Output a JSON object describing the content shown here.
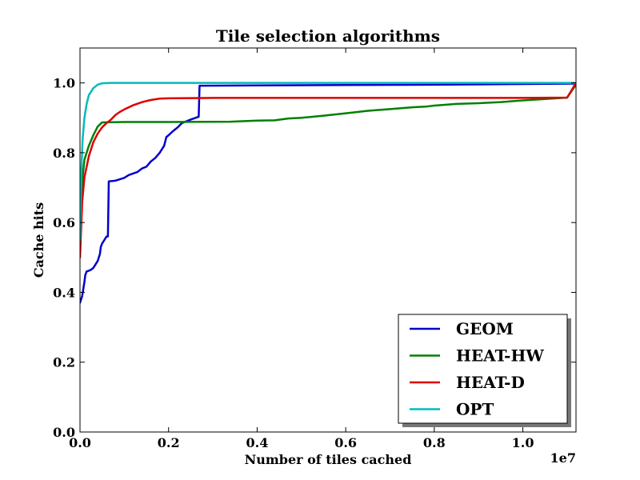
{
  "chart_data": {
    "type": "line",
    "title": "Tile selection algorithms",
    "xlabel": "Number of tiles cached",
    "ylabel": "Cache hits",
    "x_scale_label": "1e7",
    "xlim": [
      0,
      1.12
    ],
    "ylim": [
      0,
      1.1
    ],
    "xticks": [
      0.0,
      0.2,
      0.4,
      0.6,
      0.8,
      1.0
    ],
    "yticks": [
      0.0,
      0.2,
      0.4,
      0.6,
      0.8,
      1.0
    ],
    "xtick_labels": [
      "0.0",
      "0.2",
      "0.4",
      "0.6",
      "0.8",
      "1.0"
    ],
    "ytick_labels": [
      "0.0",
      "0.2",
      "0.4",
      "0.6",
      "0.8",
      "1.0"
    ],
    "legend_position": "lower-right",
    "series": [
      {
        "name": "GEOM",
        "color": "#0000cc",
        "points": [
          [
            0.0,
            0.37
          ],
          [
            0.005,
            0.39
          ],
          [
            0.01,
            0.43
          ],
          [
            0.012,
            0.45
          ],
          [
            0.015,
            0.46
          ],
          [
            0.02,
            0.462
          ],
          [
            0.025,
            0.465
          ],
          [
            0.03,
            0.47
          ],
          [
            0.035,
            0.48
          ],
          [
            0.04,
            0.49
          ],
          [
            0.045,
            0.51
          ],
          [
            0.047,
            0.53
          ],
          [
            0.05,
            0.54
          ],
          [
            0.055,
            0.55
          ],
          [
            0.06,
            0.56
          ],
          [
            0.063,
            0.56
          ],
          [
            0.065,
            0.718
          ],
          [
            0.08,
            0.72
          ],
          [
            0.09,
            0.724
          ],
          [
            0.1,
            0.728
          ],
          [
            0.11,
            0.736
          ],
          [
            0.13,
            0.745
          ],
          [
            0.14,
            0.755
          ],
          [
            0.15,
            0.76
          ],
          [
            0.16,
            0.775
          ],
          [
            0.17,
            0.785
          ],
          [
            0.18,
            0.8
          ],
          [
            0.19,
            0.82
          ],
          [
            0.195,
            0.845
          ],
          [
            0.2,
            0.85
          ],
          [
            0.21,
            0.862
          ],
          [
            0.22,
            0.872
          ],
          [
            0.23,
            0.885
          ],
          [
            0.24,
            0.89
          ],
          [
            0.25,
            0.895
          ],
          [
            0.268,
            0.903
          ],
          [
            0.27,
            0.992
          ],
          [
            0.4,
            0.993
          ],
          [
            0.6,
            0.994
          ],
          [
            0.8,
            0.995
          ],
          [
            0.92,
            0.996
          ],
          [
            1.0,
            0.997
          ],
          [
            1.12,
            0.998
          ]
        ]
      },
      {
        "name": "HEAT-HW",
        "color": "#008000",
        "points": [
          [
            0.0,
            0.6
          ],
          [
            0.005,
            0.72
          ],
          [
            0.01,
            0.78
          ],
          [
            0.02,
            0.82
          ],
          [
            0.03,
            0.85
          ],
          [
            0.04,
            0.875
          ],
          [
            0.05,
            0.887
          ],
          [
            0.1,
            0.888
          ],
          [
            0.2,
            0.888
          ],
          [
            0.34,
            0.889
          ],
          [
            0.4,
            0.892
          ],
          [
            0.44,
            0.893
          ],
          [
            0.47,
            0.898
          ],
          [
            0.5,
            0.9
          ],
          [
            0.55,
            0.906
          ],
          [
            0.6,
            0.913
          ],
          [
            0.65,
            0.92
          ],
          [
            0.7,
            0.925
          ],
          [
            0.75,
            0.93
          ],
          [
            0.78,
            0.932
          ],
          [
            0.8,
            0.935
          ],
          [
            0.85,
            0.94
          ],
          [
            0.9,
            0.942
          ],
          [
            0.95,
            0.945
          ],
          [
            1.0,
            0.95
          ],
          [
            1.05,
            0.954
          ],
          [
            1.1,
            0.958
          ],
          [
            1.12,
            0.995
          ]
        ]
      },
      {
        "name": "HEAT-D",
        "color": "#dd0000",
        "points": [
          [
            0.0,
            0.5
          ],
          [
            0.005,
            0.66
          ],
          [
            0.01,
            0.73
          ],
          [
            0.02,
            0.79
          ],
          [
            0.03,
            0.83
          ],
          [
            0.04,
            0.855
          ],
          [
            0.05,
            0.873
          ],
          [
            0.06,
            0.885
          ],
          [
            0.07,
            0.895
          ],
          [
            0.08,
            0.908
          ],
          [
            0.09,
            0.917
          ],
          [
            0.1,
            0.924
          ],
          [
            0.12,
            0.936
          ],
          [
            0.14,
            0.945
          ],
          [
            0.16,
            0.951
          ],
          [
            0.18,
            0.955
          ],
          [
            0.2,
            0.956
          ],
          [
            0.3,
            0.957
          ],
          [
            0.5,
            0.957
          ],
          [
            0.8,
            0.957
          ],
          [
            1.0,
            0.957
          ],
          [
            1.1,
            0.958
          ],
          [
            1.12,
            1.0
          ]
        ]
      },
      {
        "name": "OPT",
        "color": "#00bbbb",
        "points": [
          [
            0.0,
            0.55
          ],
          [
            0.003,
            0.75
          ],
          [
            0.006,
            0.84
          ],
          [
            0.01,
            0.9
          ],
          [
            0.015,
            0.94
          ],
          [
            0.02,
            0.965
          ],
          [
            0.03,
            0.985
          ],
          [
            0.04,
            0.995
          ],
          [
            0.05,
            0.999
          ],
          [
            0.07,
            1.0
          ],
          [
            0.3,
            1.0
          ],
          [
            0.6,
            1.0
          ],
          [
            0.9,
            1.0
          ],
          [
            1.12,
            1.0
          ]
        ]
      }
    ]
  }
}
